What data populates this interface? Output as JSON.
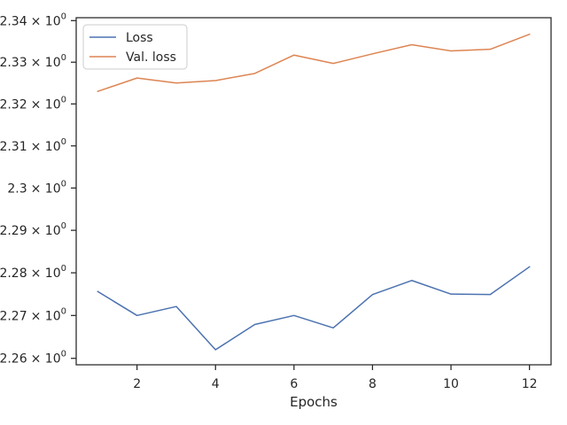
{
  "chart_data": {
    "type": "line",
    "title": "",
    "xlabel": "Epochs",
    "ylabel": "",
    "yscale": "log",
    "x": [
      1,
      2,
      3,
      4,
      5,
      6,
      7,
      8,
      9,
      10,
      11,
      12
    ],
    "xticks": [
      2,
      4,
      6,
      8,
      10,
      12
    ],
    "xlim": [
      0.45,
      12.55
    ],
    "yticks": [
      {
        "value": 2.26,
        "mantissa": "2.26"
      },
      {
        "value": 2.27,
        "mantissa": "2.27"
      },
      {
        "value": 2.28,
        "mantissa": "2.28"
      },
      {
        "value": 2.29,
        "mantissa": "2.29"
      },
      {
        "value": 2.3,
        "mantissa": "2.3"
      },
      {
        "value": 2.31,
        "mantissa": "2.31"
      },
      {
        "value": 2.32,
        "mantissa": "2.32"
      },
      {
        "value": 2.33,
        "mantissa": "2.33"
      },
      {
        "value": 2.34,
        "mantissa": "2.34"
      }
    ],
    "ytick_suffix": "× 10",
    "ytick_exponent": "0",
    "ylim": [
      2.2585,
      2.3407
    ],
    "grid": false,
    "legend_position": "top-left",
    "series": [
      {
        "name": "Loss",
        "color": "#4c72b0",
        "values": [
          2.2756,
          2.27,
          2.2721,
          2.262,
          2.2679,
          2.27,
          2.2671,
          2.2749,
          2.2782,
          2.275,
          2.2749,
          2.2814
        ]
      },
      {
        "name": "Val. loss",
        "color": "#dd8452",
        "values": [
          2.323,
          2.3262,
          2.325,
          2.3256,
          2.3273,
          2.3317,
          2.3297,
          2.332,
          2.3342,
          2.3327,
          2.3331,
          2.3367
        ]
      }
    ]
  }
}
